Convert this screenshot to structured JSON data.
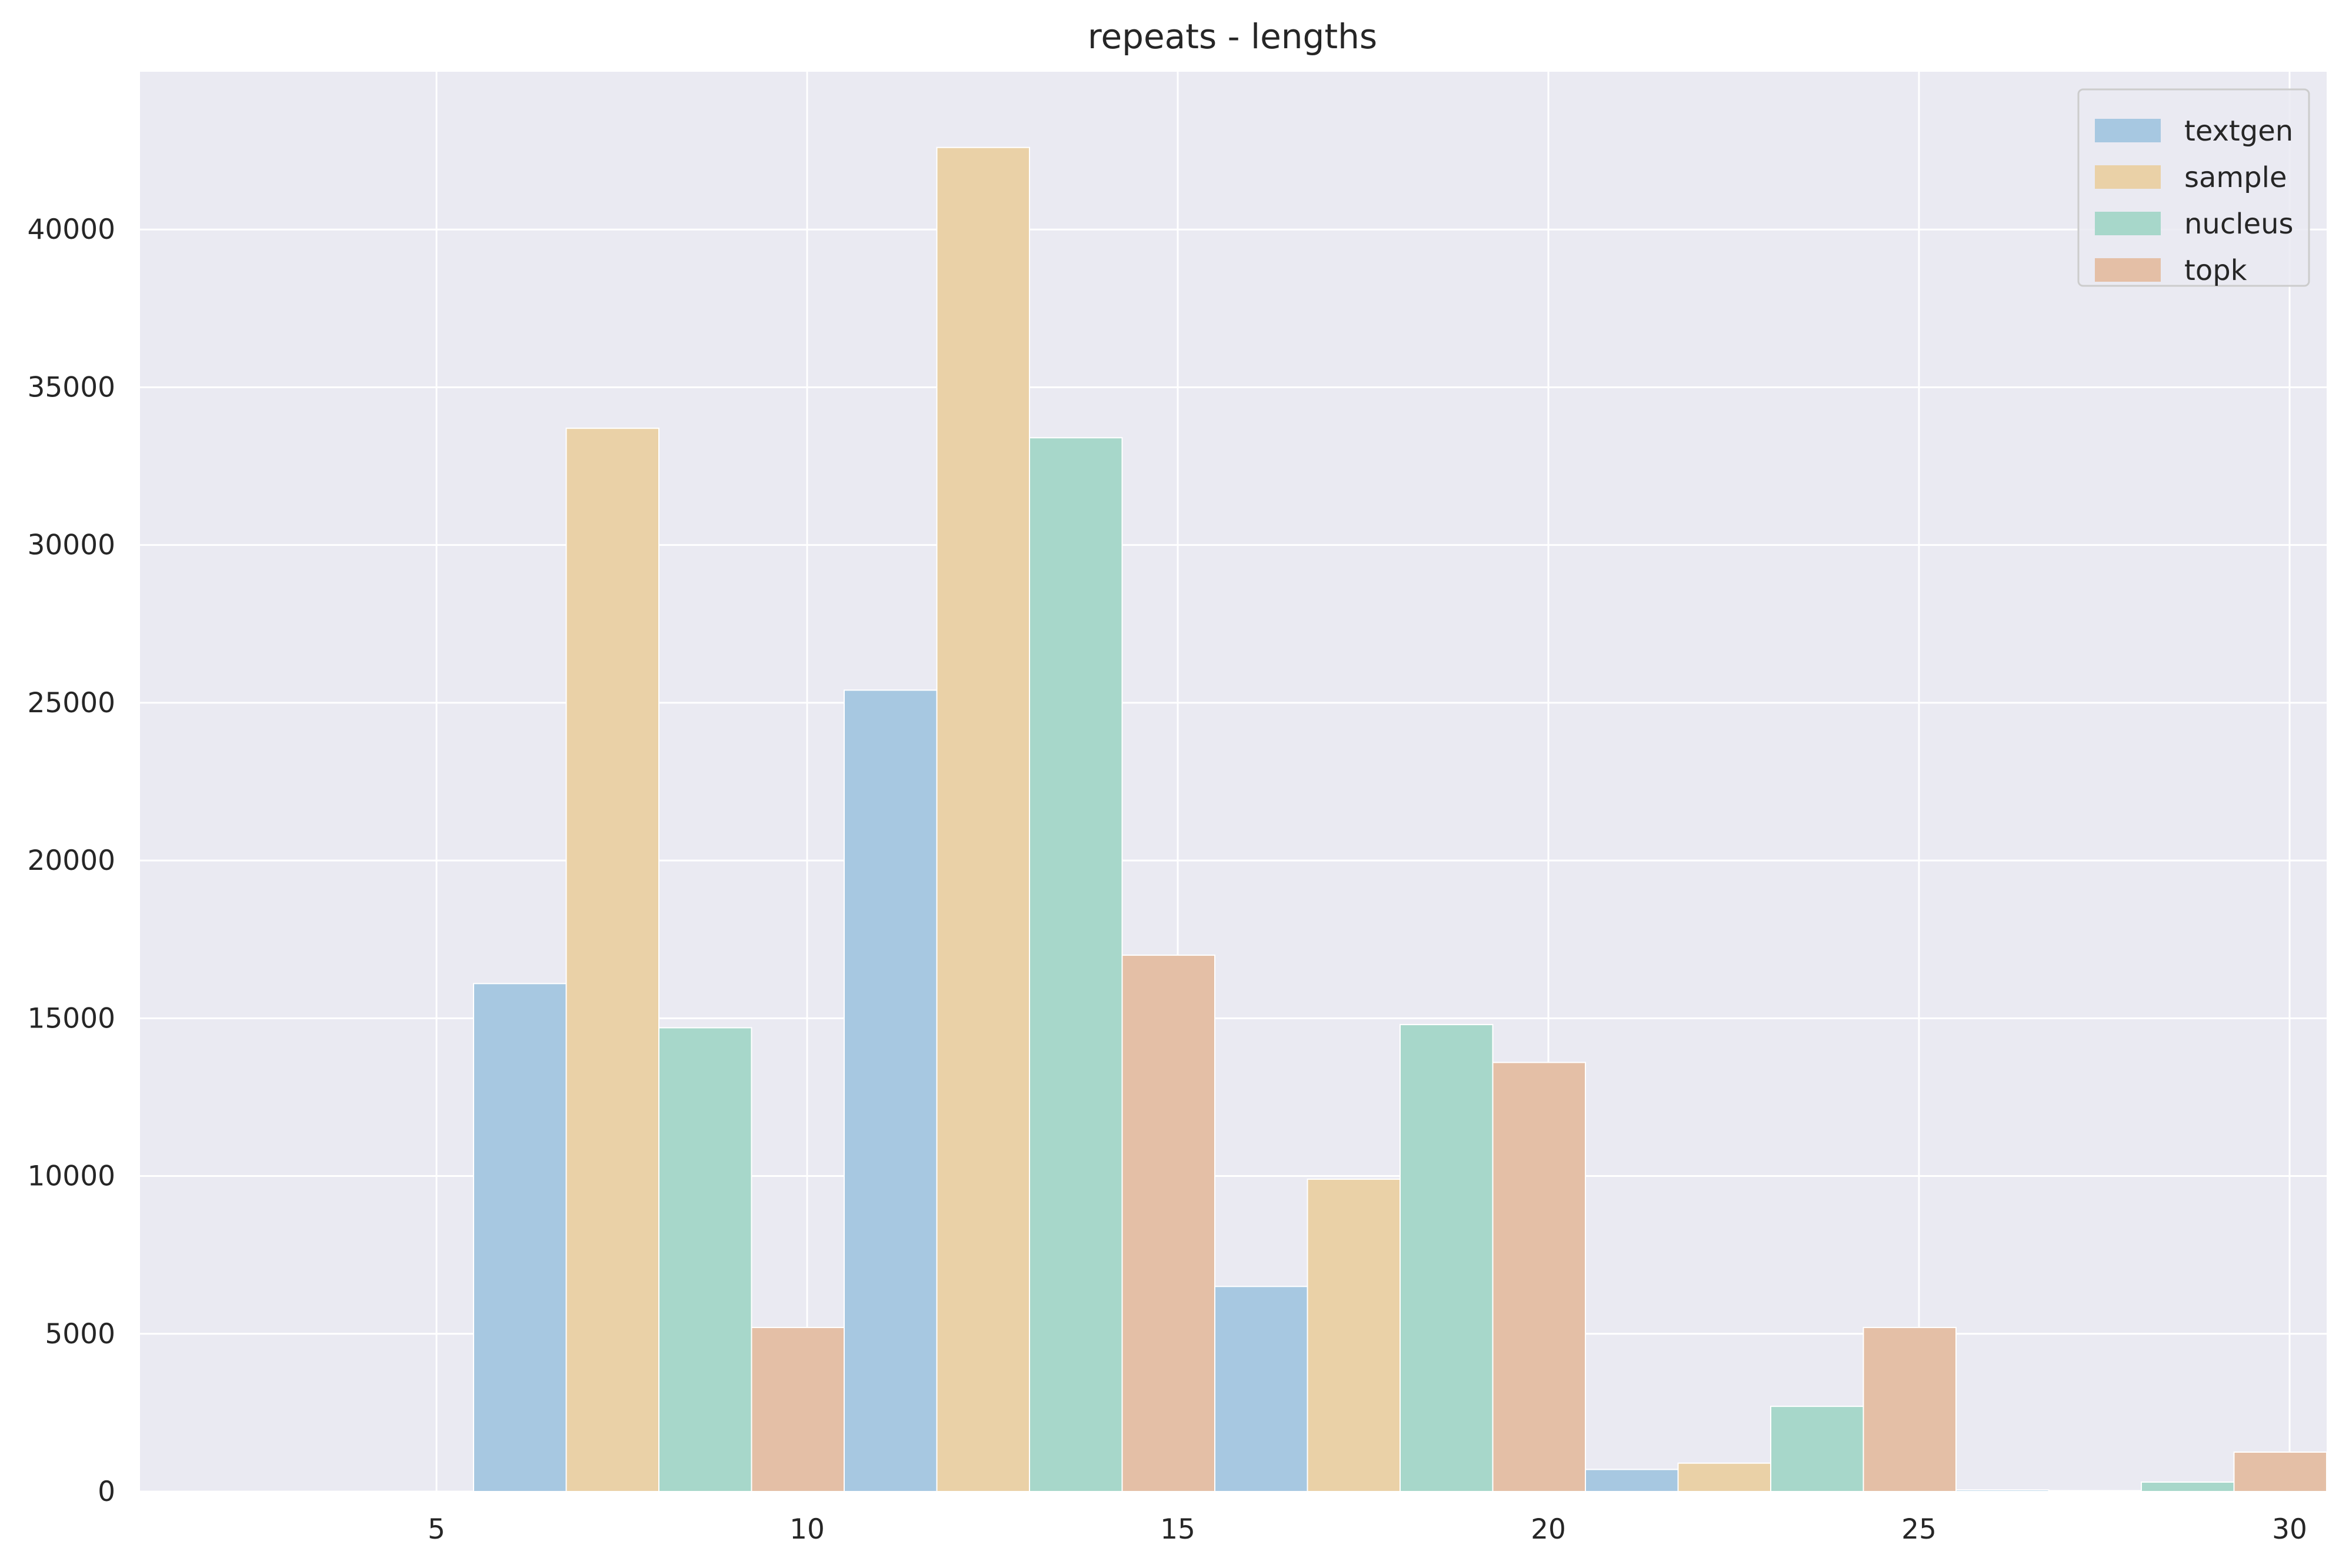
{
  "chart_data": {
    "type": "bar",
    "title": "repeats - lengths",
    "xlabel": "",
    "ylabel": "",
    "xlim": [
      1,
      30.5
    ],
    "ylim": [
      0,
      45000
    ],
    "x_ticks": [
      5,
      10,
      15,
      20,
      25,
      30
    ],
    "y_ticks": [
      0,
      5000,
      10000,
      15000,
      20000,
      25000,
      30000,
      35000,
      40000
    ],
    "grid": true,
    "legend_position": "top-right",
    "bin_edges": [
      5.5,
      10.5,
      15.5,
      20.5,
      25.5,
      30.5
    ],
    "series": [
      {
        "name": "textgen",
        "color": "#a7c8e1",
        "values": [
          16100,
          25400,
          6500,
          700,
          50
        ]
      },
      {
        "name": "sample",
        "color": "#ead1a7",
        "values": [
          33700,
          42600,
          9900,
          900,
          30
        ]
      },
      {
        "name": "nucleus",
        "color": "#a7d7ca",
        "values": [
          14700,
          33400,
          14800,
          2700,
          300
        ]
      },
      {
        "name": "topk",
        "color": "#e4bfa6",
        "values": [
          5200,
          17000,
          13600,
          5200,
          1250
        ]
      }
    ]
  },
  "style": {
    "plot_background": "#eaeaf2",
    "grid_color": "#ffffff",
    "text_color": "#262626"
  }
}
